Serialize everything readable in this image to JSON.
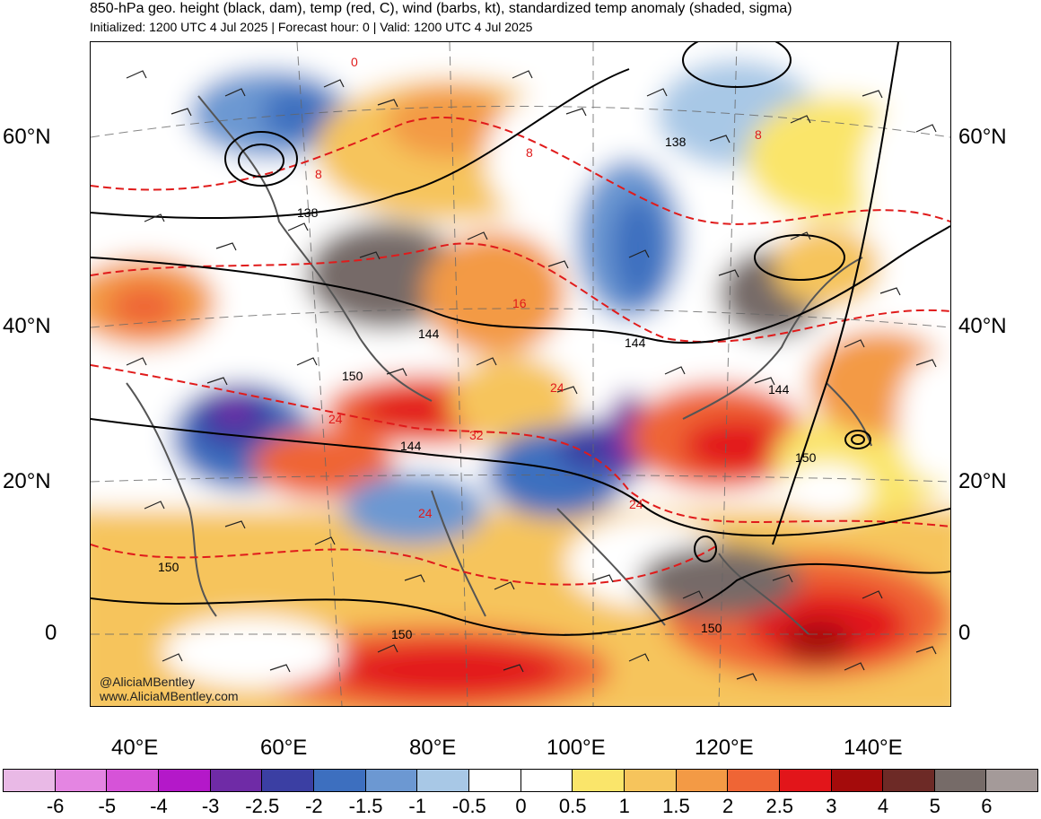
{
  "header": {
    "title": "850-hPa geo. height (black, dam), temp (red, C), wind (barbs, kt), standardized temp anomaly (shaded, sigma)",
    "subtitle": "Initialized: 1200 UTC 4 Jul 2025 | Forecast hour: 0 | Valid: 1200 UTC 4 Jul 2025"
  },
  "axes": {
    "lat_labels": [
      "60°N",
      "40°N",
      "20°N",
      "0"
    ],
    "lon_labels": [
      "40°E",
      "60°E",
      "80°E",
      "100°E",
      "120°E",
      "140°E"
    ]
  },
  "contour_labels": {
    "height": [
      "138",
      "138",
      "144",
      "144",
      "144",
      "144",
      "150",
      "150",
      "150",
      "150",
      "150"
    ],
    "temp": [
      "0",
      "8",
      "8",
      "8",
      "16",
      "24",
      "24",
      "24",
      "24",
      "32"
    ]
  },
  "credit": {
    "handle": "@AliciaMBentley",
    "site": "www.AliciaMBentley.com"
  },
  "colorbar": {
    "colors": [
      "#e9b9e6",
      "#e485e2",
      "#d653d8",
      "#b418c9",
      "#6f2ba6",
      "#3b3fa3",
      "#3d6fbf",
      "#6c98d2",
      "#a8c8e6",
      "#ffffff",
      "#ffffff",
      "#fae56a",
      "#f6c45c",
      "#f39a45",
      "#ef6535",
      "#e2151a",
      "#a40b0b",
      "#6d2a26",
      "#766b68",
      "#a49a99"
    ],
    "labels": [
      "-6",
      "-5",
      "-4",
      "-3",
      "-2.5",
      "-2",
      "-1.5",
      "-1",
      "-0.5",
      "0",
      "0.5",
      "1",
      "1.5",
      "2",
      "2.5",
      "3",
      "4",
      "5",
      "6"
    ]
  },
  "colors": {
    "height_contour": "#000000",
    "temp_contour": "#e01b1b",
    "coastline": "#555555",
    "land_neutral": "#c7c7c7"
  }
}
